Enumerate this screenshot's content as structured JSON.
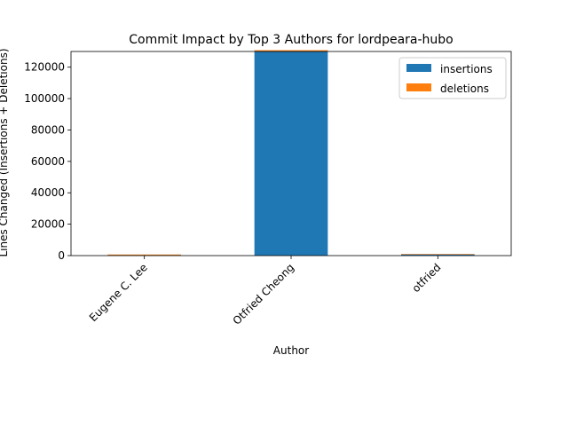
{
  "chart_data": {
    "type": "bar",
    "stacked": true,
    "title": "Commit Impact by Top 3 Authors for lordpeara-hubo",
    "xlabel": "Author",
    "ylabel": "Lines Changed (Insertions + Deletions)",
    "categories": [
      "Eugene C. Lee",
      "Otfried Cheong",
      "otfried"
    ],
    "series": [
      {
        "name": "insertions",
        "color": "#1f77b4",
        "values": [
          300,
          130000,
          900
        ]
      },
      {
        "name": "deletions",
        "color": "#ff7f0e",
        "values": [
          400,
          800,
          100
        ]
      }
    ],
    "ylim": [
      0,
      130000
    ],
    "yticks": [
      0,
      20000,
      40000,
      60000,
      80000,
      100000,
      120000
    ],
    "ytick_labels": [
      "0",
      "20000",
      "40000",
      "60000",
      "80000",
      "100000",
      "120000"
    ],
    "xtick_rotation": 45,
    "grid": false,
    "legend_position": "top-right"
  }
}
